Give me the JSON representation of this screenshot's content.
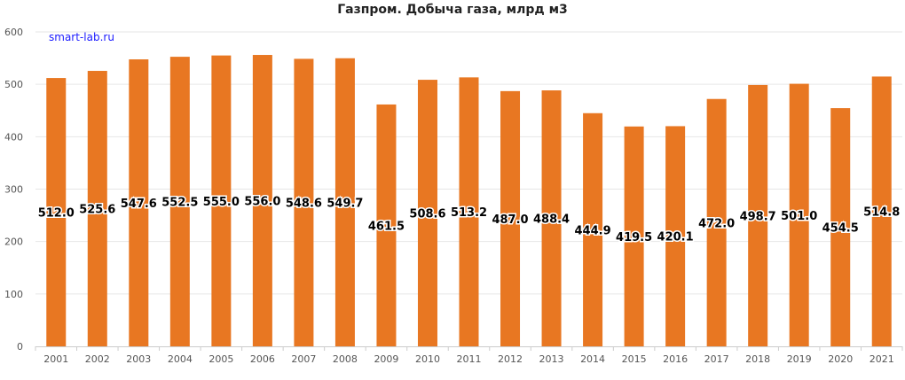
{
  "chart_data": {
    "type": "bar",
    "title": "Газпром. Добыча газа, млрд м3",
    "watermark": "smart-lab.ru",
    "xlabel": "",
    "ylabel": "",
    "categories": [
      "2001",
      "2002",
      "2003",
      "2004",
      "2005",
      "2006",
      "2007",
      "2008",
      "2009",
      "2010",
      "2011",
      "2012",
      "2013",
      "2014",
      "2015",
      "2016",
      "2017",
      "2018",
      "2019",
      "2020",
      "2021"
    ],
    "values": [
      512.0,
      525.6,
      547.6,
      552.5,
      555.0,
      556.0,
      548.6,
      549.7,
      461.5,
      508.6,
      513.2,
      487.0,
      488.4,
      444.9,
      419.5,
      420.1,
      472.0,
      498.7,
      501.0,
      454.5,
      514.8
    ],
    "value_labels": [
      "512.0",
      "525.6",
      "547.6",
      "552.5",
      "555.0",
      "556.0",
      "548.6",
      "549.7",
      "461.5",
      "508.6",
      "513.2",
      "487.0",
      "488.4",
      "444.9",
      "419.5",
      "420.1",
      "472.0",
      "498.7",
      "501.0",
      "454.5",
      "514.8"
    ],
    "ylim": [
      0,
      600
    ],
    "yticks": [
      "0",
      "100",
      "200",
      "300",
      "400",
      "500",
      "600"
    ],
    "grid": true,
    "bar_color": "#e87722"
  }
}
